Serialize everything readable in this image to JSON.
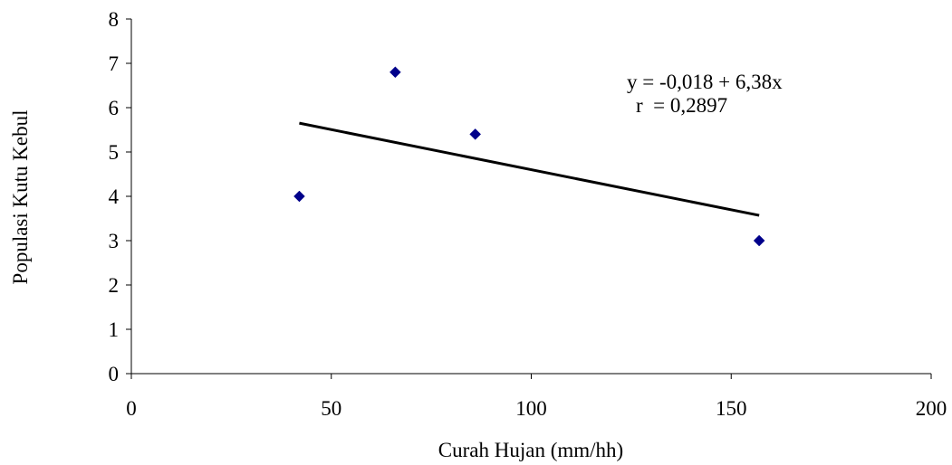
{
  "chart_data": {
    "type": "scatter",
    "title": "",
    "xlabel": "Curah Hujan (mm/hh)",
    "ylabel": "Populasi Kutu Kebul",
    "xlim": [
      0,
      200
    ],
    "ylim": [
      0,
      8
    ],
    "x_ticks": [
      0,
      50,
      100,
      150,
      200
    ],
    "y_ticks": [
      0,
      1,
      2,
      3,
      4,
      5,
      6,
      7,
      8
    ],
    "grid": false,
    "legend": "none",
    "series": [
      {
        "marker": "diamond",
        "color": "#00008B",
        "points": [
          {
            "x": 42,
            "y": 4.0
          },
          {
            "x": 66,
            "y": 6.8
          },
          {
            "x": 86,
            "y": 5.4
          },
          {
            "x": 157,
            "y": 3.0
          }
        ]
      }
    ],
    "trendline": {
      "type": "linear",
      "color": "#000000",
      "from": {
        "x": 42,
        "y": 5.65
      },
      "to": {
        "x": 157,
        "y": 3.57
      }
    },
    "annotations": [
      "y = -0,018 + 6,38x",
      "r  = 0,2897"
    ]
  }
}
